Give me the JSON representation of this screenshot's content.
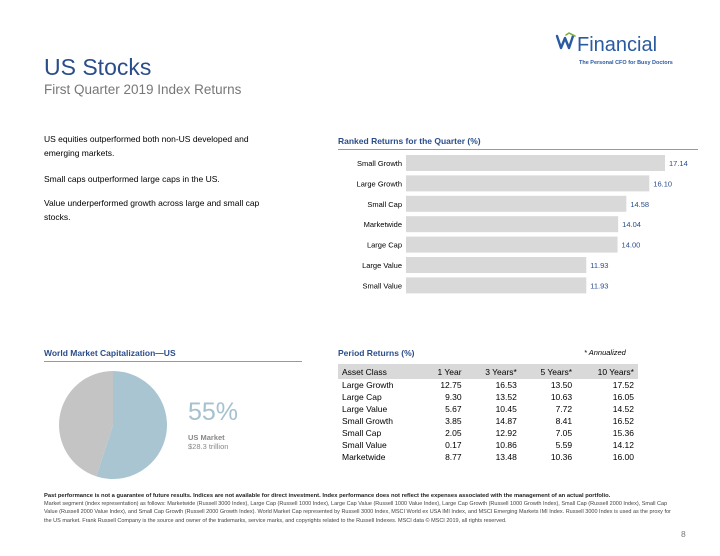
{
  "header": {
    "title": "US Stocks",
    "subtitle": "First Quarter 2019 Index Returns"
  },
  "logo": {
    "wordmark": "Financial",
    "tagline": "The Personal CFO for Busy Doctors",
    "color": "#2a5aa0"
  },
  "bullets": [
    "US equities outperformed both non-US developed and emerging markets.",
    "Small caps outperformed large caps in the US.",
    "Value underperformed growth across large and small cap stocks."
  ],
  "ranked_section": {
    "title": "Ranked Returns for the Quarter (%)"
  },
  "world_section": {
    "title": "World Market Capitalization—US"
  },
  "period_section": {
    "title": "Period Returns (%)",
    "note": "* Annualized",
    "columns": [
      "Asset Class",
      "1 Year",
      "3 Years*",
      "5 Years*",
      "10 Years*"
    ],
    "rows": [
      [
        "Large Growth",
        "12.75",
        "16.53",
        "13.50",
        "17.52"
      ],
      [
        "Large Cap",
        "9.30",
        "13.52",
        "10.63",
        "16.05"
      ],
      [
        "Large Value",
        "5.67",
        "10.45",
        "7.72",
        "14.52"
      ],
      [
        "Small Growth",
        "3.85",
        "14.87",
        "8.41",
        "16.52"
      ],
      [
        "Small Cap",
        "2.05",
        "12.92",
        "7.05",
        "15.36"
      ],
      [
        "Small Value",
        "0.17",
        "10.86",
        "5.59",
        "14.12"
      ],
      [
        "Marketwide",
        "8.77",
        "13.48",
        "10.36",
        "16.00"
      ]
    ]
  },
  "market_cap": {
    "percent": "55%",
    "label": "US Market",
    "sublabel": "$28.3 trillion",
    "colors": {
      "us": "#a8c5d1",
      "rest": "#c4c4c4"
    }
  },
  "chart_data": [
    {
      "type": "bar",
      "orientation": "horizontal",
      "title": "Ranked Returns for the Quarter (%)",
      "categories": [
        "Small Growth",
        "Large Growth",
        "Small Cap",
        "Marketwide",
        "Large Cap",
        "Large Value",
        "Small Value"
      ],
      "values": [
        17.14,
        16.1,
        14.58,
        14.04,
        14.0,
        11.93,
        11.93
      ],
      "data_labels": [
        "17.14",
        "16.10",
        "14.58",
        "14.04",
        "14.00",
        "11.93",
        "11.93"
      ],
      "xlim": [
        0,
        18
      ],
      "grid": false,
      "colors": {
        "bar": "#d9d9d9",
        "label": "#2a4d8a"
      }
    },
    {
      "type": "pie",
      "title": "World Market Capitalization—US",
      "slices": [
        {
          "label": "US Market",
          "value": 55
        },
        {
          "label": "",
          "value": 45
        }
      ]
    }
  ],
  "footnote": {
    "bold": "Past performance is not a guarantee of future results. Indices are not available for direct investment. Index performance does not reflect the expenses associated with the management of an actual portfolio.",
    "text": "Market segment (index representation) as follows: Marketwide (Russell 3000 Index), Large Cap (Russell 1000 Index), Large Cap Value (Russell 1000 Value Index), Large Cap Growth (Russell 1000 Growth Index), Small Cap (Russell 2000 Index), Small Cap Value (Russell 2000 Value Index), and Small Cap Growth (Russell 2000 Growth Index). World Market Cap represented by Russell 3000 Index, MSCI World ex USA IMI Index, and MSCI Emerging Markets IMI Index. Russell 3000 Index is used as the proxy for the US market. Frank Russell Company is the source and owner of the trademarks, service marks, and copyrights related to the Russell Indexes. MSCI data © MSCI 2019, all rights reserved."
  },
  "page_number": "8"
}
